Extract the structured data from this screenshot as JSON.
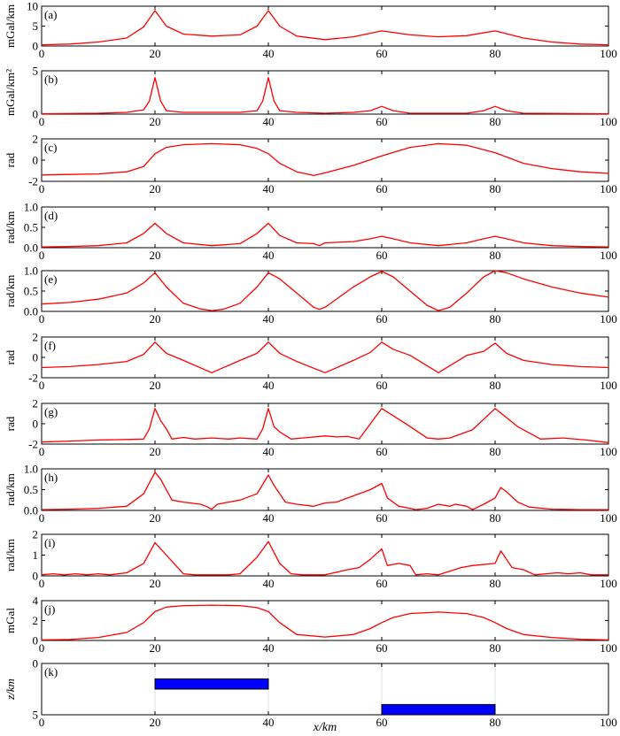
{
  "figure": {
    "xlabel": "x/km"
  },
  "colors": {
    "curve": "#ff0000",
    "block": "#0000ff",
    "axes": "#000000",
    "background": "#ffffff"
  },
  "chart_data": [
    {
      "type": "line",
      "panel": "(a)",
      "ylabel": "mGal/km",
      "xlim": [
        0,
        100
      ],
      "ylim": [
        0,
        10
      ],
      "yticks": [
        0,
        5,
        10
      ],
      "xticks": [
        0,
        20,
        40,
        60,
        80,
        100
      ],
      "grid": false,
      "legend": "none",
      "series": [
        {
          "x": [
            0,
            5,
            10,
            15,
            18,
            20,
            22,
            25,
            30,
            35,
            38,
            40,
            42,
            45,
            50,
            55,
            60,
            65,
            70,
            75,
            80,
            85,
            90,
            95,
            100
          ],
          "y": [
            0.3,
            0.5,
            1.0,
            2.0,
            4.8,
            8.9,
            5.0,
            3.0,
            2.5,
            2.8,
            5.0,
            8.9,
            5.0,
            2.5,
            1.6,
            2.3,
            3.8,
            2.8,
            2.3,
            2.6,
            3.8,
            2.0,
            1.0,
            0.5,
            0.3
          ]
        }
      ]
    },
    {
      "type": "line",
      "panel": "(b)",
      "ylabel": "mGal/km²",
      "xlim": [
        0,
        100
      ],
      "ylim": [
        0,
        5
      ],
      "yticks": [
        0,
        5
      ],
      "xticks": [
        0,
        20,
        40,
        60,
        80,
        100
      ],
      "grid": false,
      "legend": "none",
      "series": [
        {
          "x": [
            0,
            10,
            15,
            18,
            19,
            20,
            21,
            22,
            25,
            30,
            35,
            38,
            39,
            40,
            41,
            42,
            45,
            50,
            55,
            58,
            60,
            62,
            65,
            70,
            75,
            78,
            80,
            82,
            85,
            100
          ],
          "y": [
            0.05,
            0.1,
            0.2,
            0.5,
            1.5,
            4.2,
            1.5,
            0.4,
            0.2,
            0.2,
            0.2,
            0.4,
            1.5,
            4.2,
            1.5,
            0.4,
            0.2,
            0.1,
            0.2,
            0.4,
            0.9,
            0.4,
            0.1,
            0.1,
            0.1,
            0.4,
            0.9,
            0.4,
            0.1,
            0.05
          ]
        }
      ]
    },
    {
      "type": "line",
      "panel": "(c)",
      "ylabel": "rad",
      "xlim": [
        0,
        100
      ],
      "ylim": [
        -2,
        2
      ],
      "yticks": [
        -2,
        0,
        2
      ],
      "xticks": [
        0,
        20,
        40,
        60,
        80,
        100
      ],
      "grid": false,
      "legend": "none",
      "series": [
        {
          "x": [
            0,
            5,
            10,
            15,
            18,
            20,
            22,
            25,
            30,
            35,
            38,
            40,
            42,
            45,
            48,
            50,
            55,
            60,
            65,
            70,
            75,
            80,
            85,
            90,
            95,
            100
          ],
          "y": [
            -1.4,
            -1.35,
            -1.3,
            -1.1,
            -0.6,
            0.6,
            1.2,
            1.45,
            1.55,
            1.45,
            1.1,
            0.6,
            -0.3,
            -1.1,
            -1.45,
            -1.2,
            -0.5,
            0.4,
            1.2,
            1.55,
            1.4,
            0.7,
            -0.3,
            -0.8,
            -1.1,
            -1.25
          ]
        }
      ]
    },
    {
      "type": "line",
      "panel": "(d)",
      "ylabel": "rad/km",
      "xlim": [
        0,
        100
      ],
      "ylim": [
        0,
        1.0
      ],
      "yticks": [
        0.0,
        0.5,
        1.0
      ],
      "xticks": [
        0,
        20,
        40,
        60,
        80,
        100
      ],
      "grid": false,
      "legend": "none",
      "series": [
        {
          "x": [
            0,
            5,
            10,
            15,
            18,
            20,
            22,
            25,
            30,
            35,
            38,
            40,
            42,
            45,
            48,
            49,
            50,
            55,
            58,
            60,
            62,
            65,
            70,
            75,
            78,
            80,
            82,
            85,
            90,
            95,
            100
          ],
          "y": [
            0.02,
            0.03,
            0.05,
            0.12,
            0.35,
            0.6,
            0.35,
            0.12,
            0.05,
            0.1,
            0.35,
            0.6,
            0.3,
            0.12,
            0.1,
            0.05,
            0.12,
            0.15,
            0.22,
            0.28,
            0.22,
            0.12,
            0.05,
            0.12,
            0.22,
            0.28,
            0.22,
            0.12,
            0.05,
            0.03,
            0.02
          ]
        }
      ]
    },
    {
      "type": "line",
      "panel": "(e)",
      "ylabel": "rad/km",
      "xlim": [
        0,
        100
      ],
      "ylim": [
        0,
        1.0
      ],
      "yticks": [
        0.0,
        0.5,
        1.0
      ],
      "xticks": [
        0,
        20,
        40,
        60,
        80,
        100
      ],
      "grid": false,
      "legend": "none",
      "series": [
        {
          "x": [
            0,
            5,
            10,
            15,
            18,
            20,
            22,
            25,
            28,
            30,
            32,
            35,
            38,
            40,
            42,
            45,
            48,
            49,
            50,
            55,
            58,
            60,
            62,
            65,
            68,
            70,
            72,
            75,
            78,
            80,
            82,
            85,
            90,
            95,
            100
          ],
          "y": [
            0.18,
            0.22,
            0.3,
            0.45,
            0.7,
            0.95,
            0.6,
            0.2,
            0.06,
            0.02,
            0.05,
            0.2,
            0.6,
            0.95,
            0.8,
            0.45,
            0.1,
            0.05,
            0.1,
            0.6,
            0.85,
            0.98,
            0.85,
            0.5,
            0.15,
            0.02,
            0.1,
            0.45,
            0.85,
            1.0,
            0.95,
            0.8,
            0.6,
            0.45,
            0.35
          ]
        }
      ]
    },
    {
      "type": "line",
      "panel": "(f)",
      "ylabel": "rad",
      "xlim": [
        0,
        100
      ],
      "ylim": [
        -2,
        2
      ],
      "yticks": [
        -2,
        0,
        2
      ],
      "xticks": [
        0,
        20,
        40,
        60,
        80,
        100
      ],
      "grid": false,
      "legend": "none",
      "series": [
        {
          "x": [
            0,
            5,
            10,
            15,
            18,
            20,
            22,
            25,
            30,
            35,
            38,
            40,
            42,
            45,
            50,
            55,
            58,
            60,
            62,
            65,
            70,
            75,
            78,
            80,
            82,
            85,
            90,
            95,
            100
          ],
          "y": [
            -1.0,
            -0.9,
            -0.7,
            -0.4,
            0.3,
            1.5,
            0.4,
            -0.3,
            -1.5,
            -0.3,
            0.4,
            1.5,
            0.4,
            -0.4,
            -1.5,
            -0.3,
            0.5,
            1.5,
            0.8,
            0.2,
            -1.5,
            0.2,
            0.6,
            1.4,
            0.4,
            -0.3,
            -0.7,
            -0.9,
            -1.0
          ]
        }
      ]
    },
    {
      "type": "line",
      "panel": "(g)",
      "ylabel": "rad",
      "xlim": [
        0,
        100
      ],
      "ylim": [
        -2,
        2
      ],
      "yticks": [
        -2,
        0,
        2
      ],
      "xticks": [
        0,
        20,
        40,
        60,
        80,
        100
      ],
      "grid": false,
      "legend": "none",
      "series": [
        {
          "x": [
            0,
            5,
            10,
            15,
            18,
            19,
            20,
            21,
            22,
            23,
            25,
            27,
            30,
            33,
            35,
            38,
            39,
            40,
            41,
            42,
            44,
            46,
            50,
            52,
            54,
            56,
            60,
            64,
            68,
            70,
            72,
            76,
            80,
            84,
            88,
            92,
            96,
            100
          ],
          "y": [
            -1.8,
            -1.7,
            -1.6,
            -1.55,
            -1.5,
            -0.5,
            1.5,
            0.3,
            -0.5,
            -1.5,
            -1.35,
            -1.5,
            -1.4,
            -1.5,
            -1.4,
            -1.5,
            -0.5,
            1.5,
            -0.3,
            -0.8,
            -1.5,
            -1.4,
            -1.2,
            -1.3,
            -1.25,
            -1.5,
            1.5,
            0.1,
            -1.4,
            -1.5,
            -1.4,
            -0.6,
            1.5,
            -0.3,
            -1.5,
            -1.4,
            -1.6,
            -1.85
          ]
        }
      ]
    },
    {
      "type": "line",
      "panel": "(h)",
      "ylabel": "rad/km",
      "xlim": [
        0,
        100
      ],
      "ylim": [
        0,
        1.0
      ],
      "yticks": [
        0.0,
        0.5,
        1.0
      ],
      "xticks": [
        0,
        20,
        40,
        60,
        80,
        100
      ],
      "grid": false,
      "legend": "none",
      "series": [
        {
          "x": [
            0,
            5,
            10,
            15,
            18,
            20,
            21,
            23,
            25,
            28,
            29,
            30,
            31,
            33,
            35,
            38,
            40,
            41,
            43,
            45,
            48,
            50,
            52,
            55,
            58,
            60,
            61,
            63,
            65,
            66,
            68,
            70,
            72,
            73,
            75,
            76,
            78,
            80,
            81,
            82,
            84,
            86,
            90,
            95,
            100
          ],
          "y": [
            0.02,
            0.03,
            0.05,
            0.1,
            0.4,
            0.92,
            0.75,
            0.25,
            0.2,
            0.15,
            0.1,
            0.03,
            0.15,
            0.2,
            0.25,
            0.4,
            0.85,
            0.6,
            0.2,
            0.15,
            0.1,
            0.18,
            0.2,
            0.35,
            0.5,
            0.65,
            0.3,
            0.1,
            0.05,
            0.02,
            0.05,
            0.15,
            0.1,
            0.15,
            0.1,
            0.02,
            0.15,
            0.3,
            0.55,
            0.45,
            0.2,
            0.08,
            0.03,
            0.02,
            0.02
          ]
        }
      ]
    },
    {
      "type": "line",
      "panel": "(i)",
      "ylabel": "rad/km",
      "xlim": [
        0,
        100
      ],
      "ylim": [
        0,
        2
      ],
      "yticks": [
        0,
        1,
        2
      ],
      "xticks": [
        0,
        20,
        40,
        60,
        80,
        100
      ],
      "grid": false,
      "legend": "none",
      "series": [
        {
          "x": [
            0,
            2,
            4,
            6,
            8,
            10,
            12,
            15,
            18,
            20,
            22,
            24,
            25,
            27,
            30,
            33,
            35,
            38,
            40,
            42,
            44,
            46,
            50,
            54,
            56,
            58,
            60,
            61,
            63,
            65,
            66,
            68,
            70,
            74,
            76,
            80,
            81,
            83,
            85,
            87,
            89,
            91,
            93,
            95,
            97,
            100
          ],
          "y": [
            0.05,
            0.1,
            0.05,
            0.1,
            0.05,
            0.1,
            0.05,
            0.15,
            0.6,
            1.6,
            1.0,
            0.4,
            0.1,
            0.05,
            0.05,
            0.05,
            0.1,
            0.9,
            1.65,
            0.6,
            0.1,
            0.05,
            0.05,
            0.3,
            0.4,
            0.8,
            1.3,
            0.5,
            0.6,
            0.5,
            0.05,
            0.1,
            0.05,
            0.4,
            0.5,
            0.6,
            1.2,
            0.4,
            0.3,
            0.05,
            0.1,
            0.15,
            0.1,
            0.15,
            0.05,
            0.05
          ]
        }
      ]
    },
    {
      "type": "line",
      "panel": "(j)",
      "ylabel": "mGal",
      "xlim": [
        0,
        100
      ],
      "ylim": [
        0,
        4
      ],
      "yticks": [
        0,
        2,
        4
      ],
      "xticks": [
        0,
        20,
        40,
        60,
        80,
        100
      ],
      "grid": false,
      "legend": "none",
      "series": [
        {
          "x": [
            0,
            5,
            10,
            15,
            18,
            20,
            22,
            25,
            30,
            35,
            38,
            40,
            42,
            45,
            50,
            55,
            58,
            60,
            62,
            65,
            70,
            75,
            78,
            80,
            82,
            85,
            90,
            95,
            100
          ],
          "y": [
            0.05,
            0.1,
            0.3,
            0.8,
            1.8,
            2.9,
            3.35,
            3.5,
            3.55,
            3.5,
            3.3,
            2.9,
            1.8,
            0.6,
            0.35,
            0.6,
            1.2,
            1.8,
            2.3,
            2.7,
            2.85,
            2.7,
            2.3,
            1.8,
            1.2,
            0.6,
            0.3,
            0.12,
            0.05
          ]
        }
      ]
    },
    {
      "type": "bar",
      "panel": "(k)",
      "ylabel": "z/km",
      "xlim": [
        0,
        100
      ],
      "ylim": [
        0,
        5
      ],
      "y_inverted": true,
      "yticks": [
        0,
        5
      ],
      "xticks": [
        0,
        20,
        40,
        60,
        80,
        100
      ],
      "grid": false,
      "legend": "none",
      "blocks": [
        {
          "x0": 20,
          "x1": 40,
          "z_top": 1.5,
          "z_bottom": 2.5
        },
        {
          "x0": 60,
          "x1": 80,
          "z_top": 4.0,
          "z_bottom": 5.0
        }
      ]
    }
  ]
}
